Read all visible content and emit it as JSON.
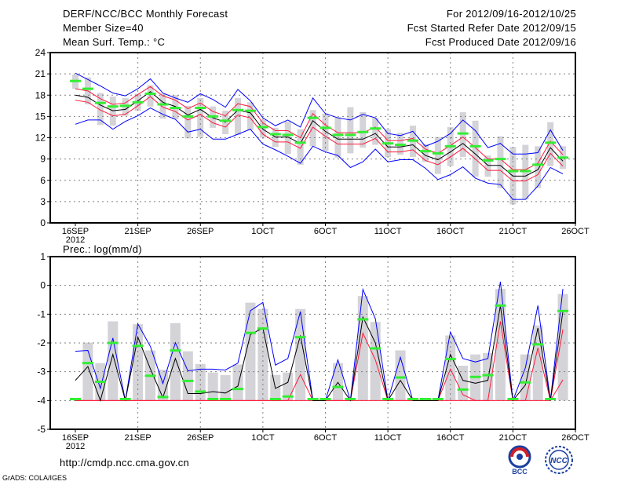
{
  "header": {
    "title": "DERF/NCC/BCC Monthly Forecast",
    "member_size": "Member Size=40",
    "variable": "Mean Surf. Temp.: °C",
    "period": "For 2012/09/16-2012/10/25",
    "started": "Fcst Started Refer Date 2012/09/15",
    "produced": "Fcst Produced Date 2012/09/16"
  },
  "footer": {
    "url": "http://cmdp.ncc.cma.gov.cn",
    "credit": "GrADS: COLA/IGES",
    "logos": [
      "BCC",
      "NCC"
    ]
  },
  "colors": {
    "mean": "#000000",
    "spread": "#ff1a3c",
    "envelope": "#0000ff",
    "observed": "#33ee33",
    "bar": "#d3d3d8",
    "grid": "#808080"
  },
  "chart_data": [
    {
      "type": "line",
      "title": "Mean Surf. Temp.: °C",
      "ylabel": "°C",
      "ylim": [
        0,
        24
      ],
      "yticks": [
        "0",
        "3",
        "6",
        "9",
        "12",
        "15",
        "18",
        "21",
        "24"
      ],
      "xticks": [
        "16SEP",
        "21SEP",
        "26SEP",
        "1OCT",
        "6OCT",
        "11OCT",
        "16OCT",
        "21OCT",
        "26OCT"
      ],
      "xyear": "2012",
      "grid": true,
      "days": 40,
      "series": [
        {
          "name": "ensemble max",
          "role": "envelope",
          "values": [
            21.1,
            20.2,
            19.3,
            18.3,
            17.9,
            18.9,
            20.3,
            18.3,
            17.6,
            17.0,
            18.2,
            17.4,
            16.3,
            18.8,
            17.2,
            14.8,
            13.7,
            14.5,
            13.5,
            17.6,
            15.4,
            14.8,
            14.5,
            15.3,
            14.8,
            12.6,
            12.3,
            12.9,
            10.8,
            11.5,
            12.6,
            14.5,
            13.0,
            10.6,
            11.2,
            9.7,
            9.7,
            9.9,
            13.1,
            10.2
          ]
        },
        {
          "name": "ensemble min",
          "role": "envelope",
          "values": [
            13.9,
            14.5,
            14.5,
            13.2,
            14.3,
            15.1,
            16.2,
            15.3,
            14.6,
            12.8,
            13.2,
            11.8,
            11.8,
            12.5,
            13.2,
            11.1,
            10.3,
            9.4,
            8.4,
            10.8,
            10.0,
            9.5,
            7.8,
            8.6,
            10.4,
            8.6,
            8.9,
            8.9,
            7.7,
            6.1,
            6.8,
            7.9,
            6.3,
            5.6,
            5.4,
            3.3,
            3.3,
            5.2,
            7.8,
            6.9
          ]
        },
        {
          "name": "upper spread",
          "role": "spread",
          "values": [
            18.9,
            18.6,
            17.5,
            16.7,
            16.9,
            18.1,
            19.2,
            17.9,
            17.3,
            16.1,
            16.9,
            15.7,
            15.1,
            16.8,
            16.4,
            14.1,
            13.0,
            13.0,
            12.0,
            15.4,
            13.8,
            12.7,
            12.7,
            12.7,
            13.5,
            11.6,
            11.6,
            11.9,
            10.4,
            9.8,
            10.9,
            12.1,
            10.6,
            9.0,
            9.0,
            7.5,
            7.5,
            8.4,
            11.5,
            9.6
          ]
        },
        {
          "name": "lower spread",
          "role": "spread",
          "values": [
            17.3,
            17.0,
            15.9,
            15.1,
            15.3,
            16.5,
            17.8,
            16.3,
            15.7,
            14.5,
            15.3,
            14.1,
            13.5,
            15.2,
            14.8,
            12.5,
            11.4,
            11.4,
            10.5,
            13.5,
            12.2,
            11.1,
            11.1,
            11.1,
            11.9,
            10.0,
            10.0,
            10.3,
            8.8,
            8.2,
            9.3,
            10.5,
            9.0,
            7.4,
            7.4,
            5.9,
            5.9,
            6.8,
            9.8,
            8.0
          ]
        },
        {
          "name": "ensemble mean",
          "role": "mean",
          "values": [
            18.0,
            17.7,
            16.6,
            15.8,
            16.0,
            17.2,
            18.5,
            17.0,
            16.4,
            15.2,
            16.0,
            14.8,
            14.2,
            15.9,
            15.5,
            13.2,
            12.1,
            12.1,
            11.2,
            14.4,
            12.9,
            11.8,
            11.8,
            11.8,
            12.6,
            10.7,
            10.7,
            11.0,
            9.5,
            8.9,
            10.0,
            11.2,
            9.7,
            8.1,
            8.1,
            6.6,
            6.6,
            7.5,
            10.6,
            8.7
          ]
        },
        {
          "name": "observed",
          "role": "observed",
          "values": [
            20.0,
            18.9,
            16.9,
            16.4,
            16.5,
            17.0,
            18.2,
            16.7,
            16.2,
            15.0,
            16.2,
            15.0,
            14.4,
            15.9,
            15.8,
            13.5,
            12.5,
            12.4,
            11.3,
            14.8,
            13.4,
            12.4,
            12.4,
            12.8,
            13.3,
            11.2,
            11.0,
            11.6,
            10.1,
            9.8,
            10.8,
            12.6,
            10.8,
            8.8,
            9.0,
            7.3,
            7.3,
            8.2,
            11.3,
            9.2
          ]
        }
      ],
      "bars_low": [
        18.9,
        16.7,
        13.8,
        13.7,
        15.1,
        15.8,
        16.4,
        14.7,
        14.6,
        11.9,
        12.1,
        13.4,
        12.5,
        12.4,
        13.1,
        12.0,
        10.7,
        9.7,
        8.2,
        10.8,
        10.1,
        9.2,
        9.8,
        10.6,
        11.0,
        9.3,
        9.6,
        9.3,
        8.6,
        6.9,
        8.0,
        9.3,
        6.5,
        6.5,
        4.9,
        2.6,
        3.3,
        4.9,
        8.0,
        7.6
      ],
      "bars_high": [
        20.9,
        20.5,
        18.3,
        17.8,
        17.6,
        18.2,
        19.4,
        18.2,
        18.0,
        16.5,
        17.6,
        16.4,
        15.8,
        17.6,
        17.0,
        14.5,
        13.4,
        14.3,
        13.2,
        15.9,
        15.4,
        14.9,
        16.3,
        15.6,
        14.8,
        13.2,
        12.7,
        13.7,
        11.1,
        12.1,
        13.5,
        15.6,
        14.4,
        9.5,
        12.2,
        10.7,
        11.0,
        10.8,
        14.2,
        10.8
      ]
    },
    {
      "type": "line",
      "title": "Prec.: log(mm/d)",
      "ylabel": "log(mm/d)",
      "ylim": [
        -5,
        1
      ],
      "yticks": [
        "-5",
        "-4",
        "-3",
        "-2",
        "-1",
        "0",
        "1"
      ],
      "xticks": [
        "16SEP",
        "21SEP",
        "26SEP",
        "1OCT",
        "6OCT",
        "11OCT",
        "16OCT",
        "21OCT",
        "26OCT"
      ],
      "xyear": "2012",
      "grid": true,
      "days": 40,
      "baseline": -4,
      "series": [
        {
          "name": "ensemble max",
          "role": "envelope",
          "values": [
            -2.29,
            -2.26,
            -3.58,
            -1.83,
            -4,
            -1.34,
            -2.12,
            -3.41,
            -1.99,
            -2.97,
            -2.91,
            -2.91,
            -2.94,
            -2.7,
            -0.88,
            -0.59,
            -2.77,
            -2.54,
            -0.91,
            -4,
            -4,
            -2.59,
            -4,
            -0.14,
            -1.16,
            -4,
            -2.5,
            -4,
            -4,
            -4,
            -1.62,
            -2.54,
            -2.66,
            -2.54,
            0.13,
            -4,
            -2.86,
            -0.7,
            -4,
            -0.12
          ]
        },
        {
          "name": "upper spread",
          "role": "spread",
          "values": [
            -4,
            -4,
            -4,
            -4,
            -4,
            -4,
            -4,
            -4,
            -4,
            -4,
            -4,
            -4,
            -4,
            -4,
            -4,
            -4,
            -4,
            -4,
            -3.1,
            -4,
            -4,
            -4,
            -4,
            -1.66,
            -2.59,
            -4,
            -4,
            -4,
            -4,
            -4,
            -2.91,
            -3.8,
            -4,
            -4,
            -1.25,
            -4,
            -4,
            -2.17,
            -4,
            -1.53
          ]
        },
        {
          "name": "lower spread",
          "role": "spread",
          "values": [
            -4,
            -4,
            -4,
            -4,
            -4,
            -4,
            -4,
            -4,
            -4,
            -4,
            -4,
            -4,
            -4,
            -4,
            -4,
            -4,
            -4,
            -4,
            -4,
            -4,
            -4,
            -4,
            -4,
            -4,
            -4,
            -4,
            -4,
            -4,
            -4,
            -4,
            -4,
            -4,
            -4,
            -4,
            -4,
            -4,
            -4,
            -4,
            -4,
            -3.28
          ]
        },
        {
          "name": "ensemble mean",
          "role": "mean",
          "values": [
            -3.3,
            -2.82,
            -4,
            -2.4,
            -4,
            -1.8,
            -2.9,
            -3.9,
            -2.54,
            -3.76,
            -3.76,
            -3.69,
            -3.74,
            -3.5,
            -1.71,
            -1.48,
            -3.58,
            -3.37,
            -1.74,
            -4,
            -4,
            -3.37,
            -4,
            -1.1,
            -2.0,
            -4,
            -3.3,
            -4,
            -4,
            -4,
            -2.4,
            -3.3,
            -3.4,
            -3.3,
            -0.7,
            -4,
            -3.46,
            -1.48,
            -4,
            -0.9
          ]
        },
        {
          "name": "observed",
          "role": "observed",
          "values": [
            -3.95,
            -2.7,
            -3.35,
            -2.0,
            -3.95,
            -2.1,
            -3.14,
            -3.88,
            -2.26,
            -3.32,
            -3.69,
            -3.95,
            -3.95,
            -3.6,
            -1.65,
            -1.5,
            -3.95,
            -3.86,
            -1.8,
            -3.95,
            -3.95,
            -3.53,
            -3.95,
            -1.18,
            -2.19,
            -3.95,
            -3.2,
            -3.95,
            -3.95,
            -3.95,
            -2.56,
            -3.62,
            -3.18,
            -3.12,
            -0.7,
            -3.95,
            -3.37,
            -2.05,
            -3.95,
            -0.89
          ]
        }
      ],
      "bars_high": [
        -4,
        -1.99,
        -2.7,
        -1.25,
        -4,
        -1.35,
        -2.26,
        -2.93,
        -1.31,
        -2.29,
        -2.73,
        -3.03,
        -3.12,
        -2.75,
        -0.6,
        -0.82,
        -3.11,
        -3.03,
        -0.82,
        -4,
        -4,
        -2.7,
        -4,
        -0.37,
        -1.27,
        -4,
        -2.26,
        -4,
        -4,
        -4,
        -1.74,
        -2.79,
        -2.4,
        -2.35,
        -0.12,
        -4,
        -2.4,
        -1.39,
        -4,
        -0.3
      ]
    }
  ]
}
